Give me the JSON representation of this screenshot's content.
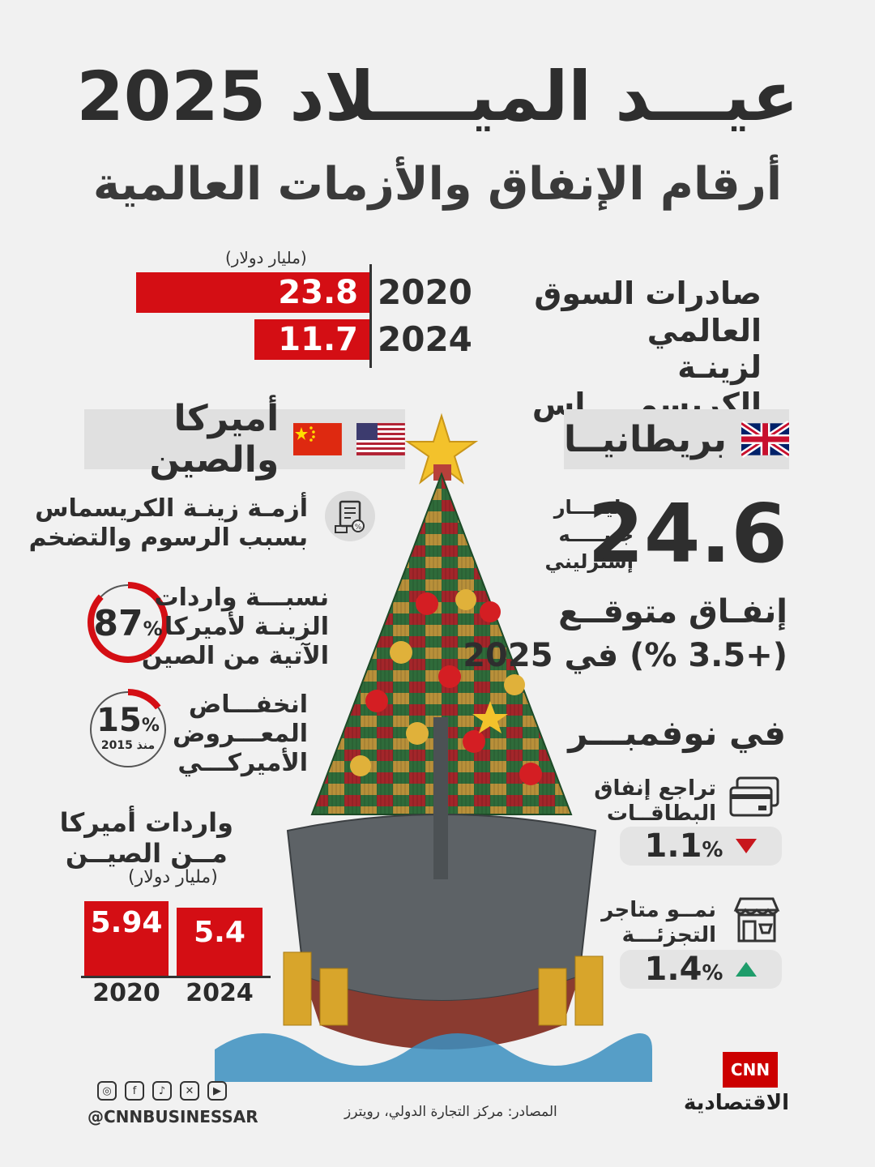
{
  "title": "عيـــد الميــــلاد 2025",
  "subtitle": "أرقام الإنفاق والأزمات العالمية",
  "exports": {
    "label_line1": "صادرات السوق العالمي",
    "label_line2": "لزينـة الكريسمـــــاس",
    "unit": "(مليار دولار)",
    "bars": [
      {
        "year": "2020",
        "value_text": "23.8",
        "value": 23.8
      },
      {
        "year": "2024",
        "value_text": "11.7",
        "value": 11.7
      }
    ]
  },
  "uk": {
    "heading": "بريطانيــا",
    "big_number": "24.6",
    "unit_line1": "مليـــــار",
    "unit_line2": "جنيـــــه",
    "unit_line3": "إسترليني",
    "spend_line1": "إنفـاق متوقــع",
    "spend_line2": "(+3.5 %) في 2025",
    "november_heading": "في نوفمبـــر",
    "cards_line1": "تراجع إنفاق",
    "cards_line2": "البطاقــات",
    "cards_value": "1.1",
    "cards_percent": "%",
    "retail_line1": "نمــو متاجر",
    "retail_line2": "التجزئـــة",
    "retail_value": "1.4",
    "retail_percent": "%"
  },
  "us_china": {
    "heading": "أميركا والصين",
    "crisis_line1": "أزمـة زينـة الكريسماس",
    "crisis_line2": "بسبب الرسوم والتضخم",
    "imports_share_line1": "نسبـــة واردات",
    "imports_share_line2": "الزينـة لأميركا",
    "imports_share_line3": "الآتية من الصين",
    "imports_share_value": "87",
    "imports_share_percent": "%",
    "imports_share_fraction": 0.87,
    "supply_line1": "انخفـــاض",
    "supply_line2": "المعـــروض",
    "supply_line3": "الأميركـــي",
    "supply_value": "15",
    "supply_percent": "%",
    "supply_since": "منذ 2015",
    "supply_fraction": 0.15,
    "imports_title_line1": "واردات أميركا",
    "imports_title_line2": "مــن الصيــن",
    "imports_unit": "(مليار دولار)",
    "imports_bars": [
      {
        "year": "2020",
        "value_text": "5.94",
        "value": 5.94
      },
      {
        "year": "2024",
        "value_text": "5.4",
        "value": 5.4
      }
    ]
  },
  "footer": {
    "handle": "@CNNBUSINESSAR",
    "sources": "المصادر: مركز التجارة الدولي، رويترز",
    "logo_top": "CNN",
    "logo_bottom": "الاقتصادية"
  },
  "colors": {
    "accent": "#d40e14",
    "down": "#c8161d",
    "up": "#1f9d6b",
    "tree_green": "#2f6b3a"
  }
}
